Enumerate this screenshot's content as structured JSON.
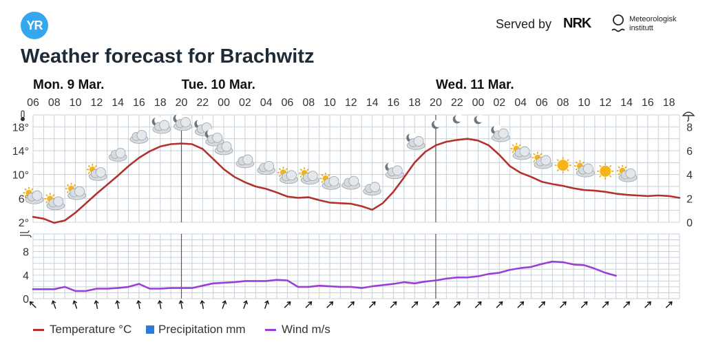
{
  "header": {
    "logo_text": "YR",
    "served_by": "Served by",
    "nrk_logo_text": "NRK",
    "met_line1": "Meteorologisk",
    "met_line2": "institutt",
    "title": "Weather forecast for Brachwitz"
  },
  "chart_data": {
    "type": "line",
    "days": [
      "Mon. 9 Mar.",
      "Tue. 10 Mar.",
      "Wed. 11 Mar."
    ],
    "hour_ticks": [
      "06",
      "08",
      "10",
      "12",
      "14",
      "16",
      "18",
      "20",
      "22",
      "00",
      "02",
      "04",
      "06",
      "08",
      "10",
      "12",
      "14",
      "16",
      "18",
      "20",
      "22",
      "00",
      "02",
      "04",
      "06",
      "08",
      "10",
      "12",
      "14",
      "16",
      "18"
    ],
    "temp_axis": {
      "ticks": [
        "18°",
        "14°",
        "10°",
        "6°",
        "2°"
      ],
      "range": [
        2,
        20
      ]
    },
    "precip_axis": {
      "ticks": [
        "8",
        "6",
        "4",
        "2",
        "0"
      ],
      "range": [
        0,
        9
      ]
    },
    "wind_axis": {
      "ticks": [
        "8",
        "4",
        "0"
      ],
      "range": [
        0,
        11
      ]
    },
    "x_range_hours": [
      4,
      65
    ],
    "day_boundaries_hours": [
      18,
      42
    ],
    "series": [
      {
        "name": "Temperature °C",
        "color": "#b3312c",
        "points": [
          [
            4,
            2.9
          ],
          [
            5,
            2.6
          ],
          [
            6,
            1.9
          ],
          [
            7,
            2.3
          ],
          [
            8,
            3.6
          ],
          [
            9,
            5.2
          ],
          [
            10,
            6.8
          ],
          [
            11,
            8.3
          ],
          [
            12,
            9.8
          ],
          [
            13,
            11.4
          ],
          [
            14,
            12.8
          ],
          [
            15,
            13.9
          ],
          [
            16,
            14.7
          ],
          [
            17,
            15.1
          ],
          [
            18,
            15.2
          ],
          [
            19,
            15.1
          ],
          [
            20,
            14.3
          ],
          [
            21,
            12.6
          ],
          [
            22,
            10.9
          ],
          [
            23,
            9.6
          ],
          [
            24,
            8.7
          ],
          [
            25,
            8.0
          ],
          [
            26,
            7.6
          ],
          [
            27,
            7.0
          ],
          [
            28,
            6.3
          ],
          [
            29,
            6.1
          ],
          [
            30,
            6.2
          ],
          [
            31,
            5.7
          ],
          [
            32,
            5.3
          ],
          [
            33,
            5.2
          ],
          [
            34,
            5.1
          ],
          [
            35,
            4.7
          ],
          [
            36,
            4.1
          ],
          [
            37,
            5.2
          ],
          [
            38,
            7.1
          ],
          [
            39,
            9.5
          ],
          [
            40,
            12.0
          ],
          [
            41,
            13.8
          ],
          [
            42,
            14.9
          ],
          [
            43,
            15.5
          ],
          [
            44,
            15.8
          ],
          [
            45,
            16.0
          ],
          [
            46,
            15.7
          ],
          [
            47,
            14.9
          ],
          [
            48,
            13.3
          ],
          [
            49,
            11.4
          ],
          [
            50,
            10.3
          ],
          [
            51,
            9.6
          ],
          [
            52,
            8.8
          ],
          [
            53,
            8.4
          ],
          [
            54,
            8.1
          ],
          [
            55,
            7.7
          ],
          [
            56,
            7.4
          ],
          [
            57,
            7.3
          ],
          [
            58,
            7.1
          ],
          [
            59,
            6.8
          ],
          [
            60,
            6.6
          ],
          [
            61,
            6.5
          ],
          [
            62,
            6.4
          ],
          [
            63,
            6.5
          ],
          [
            64,
            6.4
          ],
          [
            65,
            6.1
          ]
        ]
      },
      {
        "name": "Precipitation mm",
        "color": "#2f7ad6",
        "points": []
      },
      {
        "name": "Wind m/s",
        "color": "#9a3fd6",
        "points": [
          [
            4,
            1.6
          ],
          [
            5,
            1.6
          ],
          [
            6,
            1.6
          ],
          [
            7,
            2.0
          ],
          [
            8,
            1.3
          ],
          [
            9,
            1.3
          ],
          [
            10,
            1.7
          ],
          [
            11,
            1.7
          ],
          [
            12,
            1.8
          ],
          [
            13,
            2.0
          ],
          [
            14,
            2.5
          ],
          [
            15,
            1.7
          ],
          [
            16,
            1.7
          ],
          [
            17,
            1.8
          ],
          [
            18,
            1.8
          ],
          [
            19,
            1.8
          ],
          [
            20,
            2.2
          ],
          [
            21,
            2.6
          ],
          [
            22,
            2.7
          ],
          [
            23,
            2.8
          ],
          [
            24,
            3.0
          ],
          [
            25,
            3.0
          ],
          [
            26,
            3.0
          ],
          [
            27,
            3.2
          ],
          [
            28,
            3.1
          ],
          [
            29,
            2.0
          ],
          [
            30,
            2.0
          ],
          [
            31,
            2.2
          ],
          [
            32,
            2.1
          ],
          [
            33,
            2.0
          ],
          [
            34,
            2.0
          ],
          [
            35,
            1.8
          ],
          [
            36,
            2.1
          ],
          [
            37,
            2.3
          ],
          [
            38,
            2.5
          ],
          [
            39,
            2.8
          ],
          [
            40,
            2.6
          ],
          [
            41,
            2.9
          ],
          [
            42,
            3.1
          ],
          [
            43,
            3.4
          ],
          [
            44,
            3.6
          ],
          [
            45,
            3.6
          ],
          [
            46,
            3.8
          ],
          [
            47,
            4.2
          ],
          [
            48,
            4.4
          ],
          [
            49,
            4.9
          ],
          [
            50,
            5.2
          ],
          [
            51,
            5.4
          ],
          [
            52,
            5.9
          ],
          [
            53,
            6.3
          ],
          [
            54,
            6.2
          ],
          [
            55,
            5.8
          ],
          [
            56,
            5.7
          ],
          [
            57,
            5.1
          ],
          [
            58,
            4.4
          ],
          [
            59,
            3.9
          ]
        ]
      }
    ],
    "weather_icons": [
      {
        "hour": 4,
        "icon": "partly-cloudy-day-icon"
      },
      {
        "hour": 6,
        "icon": "partly-cloudy-day-icon"
      },
      {
        "hour": 8,
        "icon": "partly-cloudy-day-icon"
      },
      {
        "hour": 10,
        "icon": "partly-cloudy-day-icon"
      },
      {
        "hour": 12,
        "icon": "cloudy-icon"
      },
      {
        "hour": 14,
        "icon": "cloudy-icon"
      },
      {
        "hour": 16,
        "icon": "partly-cloudy-night-icon"
      },
      {
        "hour": 18,
        "icon": "partly-cloudy-night-icon"
      },
      {
        "hour": 20,
        "icon": "partly-cloudy-night-icon"
      },
      {
        "hour": 21,
        "icon": "partly-cloudy-night-icon"
      },
      {
        "hour": 22,
        "icon": "cloudy-icon"
      },
      {
        "hour": 24,
        "icon": "cloudy-icon"
      },
      {
        "hour": 26,
        "icon": "cloudy-icon"
      },
      {
        "hour": 28,
        "icon": "partly-cloudy-day-icon"
      },
      {
        "hour": 30,
        "icon": "partly-cloudy-day-icon"
      },
      {
        "hour": 32,
        "icon": "partly-cloudy-day-icon"
      },
      {
        "hour": 34,
        "icon": "cloudy-icon"
      },
      {
        "hour": 36,
        "icon": "cloudy-icon"
      },
      {
        "hour": 38,
        "icon": "partly-cloudy-night-icon"
      },
      {
        "hour": 40,
        "icon": "partly-cloudy-night-icon"
      },
      {
        "hour": 42,
        "icon": "clear-night-icon"
      },
      {
        "hour": 44,
        "icon": "clear-night-icon"
      },
      {
        "hour": 46,
        "icon": "clear-night-icon"
      },
      {
        "hour": 48,
        "icon": "partly-cloudy-night-icon"
      },
      {
        "hour": 50,
        "icon": "partly-cloudy-day-icon"
      },
      {
        "hour": 52,
        "icon": "partly-cloudy-day-icon"
      },
      {
        "hour": 54,
        "icon": "sun-icon"
      },
      {
        "hour": 56,
        "icon": "partly-cloudy-day-icon"
      },
      {
        "hour": 58,
        "icon": "sun-icon"
      },
      {
        "hour": 60,
        "icon": "partly-cloudy-day-icon"
      }
    ],
    "wind_arrow_angles_deg": [
      -45,
      -20,
      -20,
      -10,
      -10,
      -10,
      -10,
      -10,
      -10,
      20,
      20,
      20,
      45,
      45,
      45,
      45,
      45,
      45,
      45,
      45,
      45,
      45,
      45,
      45,
      45,
      45,
      45,
      45,
      45,
      45,
      45
    ],
    "grid": true,
    "legend_position": "bottom-left"
  },
  "legend": {
    "temperature": "Temperature °C",
    "precipitation": "Precipitation mm",
    "wind": "Wind m/s"
  },
  "colors": {
    "temperature": "#b3312c",
    "precipitation": "#2f7ad6",
    "wind": "#9a3fd6",
    "grid": "#c7d0da",
    "logo": "#35a7ee"
  }
}
